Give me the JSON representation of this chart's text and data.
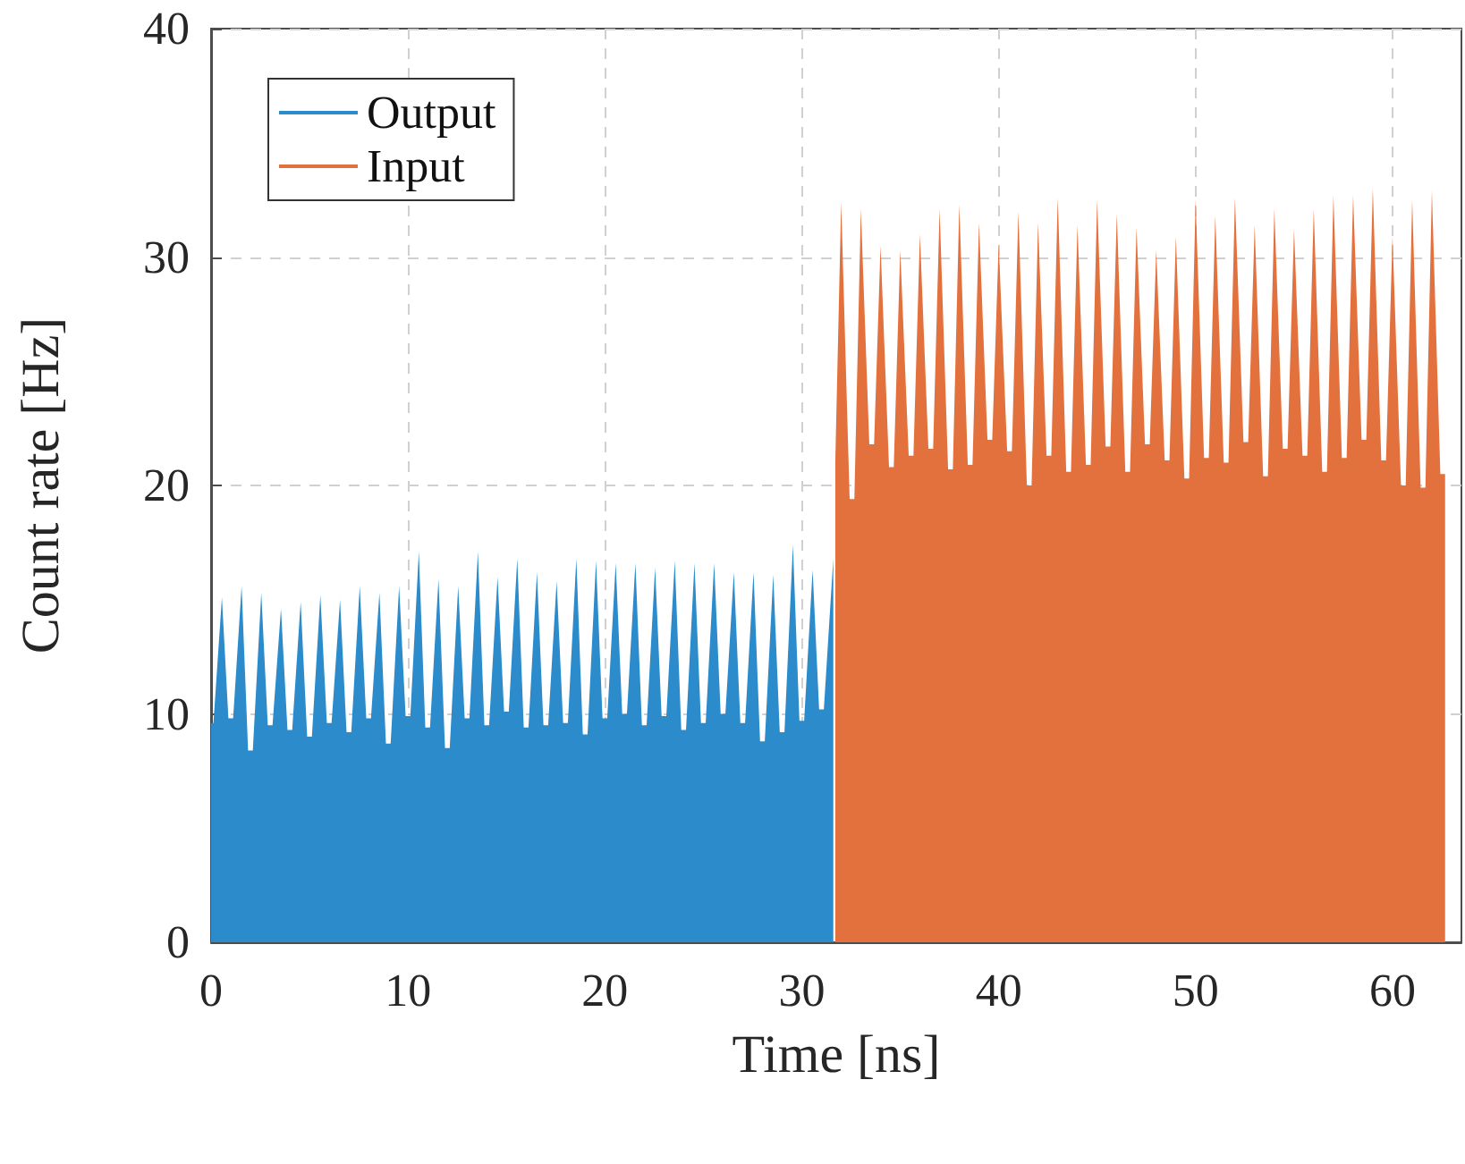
{
  "chart_data": {
    "type": "area",
    "xlabel": "Time [ns]",
    "ylabel": "Count rate [Hz]",
    "xlim": [
      0,
      63.5
    ],
    "xticks": [
      0,
      10,
      20,
      30,
      40,
      50,
      60
    ],
    "ylim": [
      0,
      40
    ],
    "yticks": [
      0,
      10,
      20,
      30,
      40
    ],
    "grid": true,
    "legend": "top left",
    "marker": "none",
    "series": [
      {
        "name": "Output",
        "color": "#2b8bcb",
        "x": [
          0,
          0.12,
          0.55,
          0.88,
          1.12,
          1.55,
          1.88,
          2.12,
          2.55,
          2.88,
          3.12,
          3.55,
          3.88,
          4.12,
          4.55,
          4.88,
          5.12,
          5.55,
          5.88,
          6.12,
          6.55,
          6.88,
          7.12,
          7.55,
          7.88,
          8.12,
          8.55,
          8.88,
          9.12,
          9.55,
          9.88,
          10.12,
          10.55,
          10.88,
          11.12,
          11.55,
          11.88,
          12.12,
          12.55,
          12.88,
          13.12,
          13.55,
          13.88,
          14.12,
          14.55,
          14.88,
          15.12,
          15.55,
          15.88,
          16.12,
          16.55,
          16.88,
          17.12,
          17.55,
          17.88,
          18.12,
          18.55,
          18.88,
          19.12,
          19.55,
          19.88,
          20.12,
          20.55,
          20.88,
          21.12,
          21.55,
          21.88,
          22.12,
          22.55,
          22.88,
          23.12,
          23.55,
          23.88,
          24.12,
          24.55,
          24.88,
          25.12,
          25.55,
          25.88,
          26.12,
          26.55,
          26.88,
          27.12,
          27.55,
          27.88,
          28.12,
          28.55,
          28.88,
          29.12,
          29.55,
          29.88,
          30.12,
          30.55,
          30.88,
          31.12,
          31.6
        ],
        "values": [
          9.6,
          9.6,
          15.1,
          9.8,
          9.8,
          15.6,
          8.4,
          8.4,
          15.3,
          9.5,
          9.5,
          14.6,
          9.3,
          9.3,
          14.9,
          9.0,
          9.0,
          15.2,
          9.6,
          9.6,
          15.0,
          9.2,
          9.2,
          15.6,
          9.8,
          9.8,
          15.3,
          8.7,
          8.7,
          15.6,
          9.9,
          9.9,
          17.1,
          9.4,
          9.4,
          15.9,
          8.5,
          8.5,
          15.6,
          9.8,
          9.8,
          17.1,
          9.5,
          9.5,
          16.0,
          10.1,
          10.1,
          16.8,
          9.4,
          9.4,
          16.2,
          9.5,
          9.5,
          15.8,
          9.6,
          9.6,
          16.8,
          9.1,
          9.1,
          16.7,
          9.8,
          9.8,
          16.6,
          10.0,
          10.0,
          16.6,
          9.5,
          9.5,
          16.4,
          9.9,
          9.9,
          16.7,
          9.3,
          9.3,
          16.6,
          9.6,
          9.6,
          16.6,
          10.0,
          10.0,
          16.2,
          9.6,
          9.6,
          16.2,
          8.8,
          8.8,
          16.1,
          9.2,
          9.2,
          17.4,
          9.7,
          9.7,
          16.3,
          10.2,
          10.2,
          16.8
        ]
      },
      {
        "name": "Input",
        "color": "#e3713d",
        "x": [
          31.7,
          32,
          32.43,
          32.67,
          33,
          33.43,
          33.67,
          34,
          34.43,
          34.67,
          35,
          35.43,
          35.67,
          36,
          36.43,
          36.67,
          37,
          37.43,
          37.67,
          38,
          38.43,
          38.67,
          39,
          39.43,
          39.67,
          40,
          40.43,
          40.67,
          41,
          41.43,
          41.67,
          42,
          42.43,
          42.67,
          43,
          43.43,
          43.67,
          44,
          44.43,
          44.67,
          45,
          45.43,
          45.67,
          46,
          46.43,
          46.67,
          47,
          47.43,
          47.67,
          48,
          48.43,
          48.67,
          49,
          49.43,
          49.67,
          50,
          50.43,
          50.67,
          51,
          51.43,
          51.67,
          52,
          52.43,
          52.67,
          53,
          53.43,
          53.67,
          54,
          54.43,
          54.67,
          55,
          55.43,
          55.67,
          56,
          56.43,
          56.67,
          57,
          57.43,
          57.67,
          58,
          58.43,
          58.67,
          59,
          59.43,
          59.67,
          60,
          60.43,
          60.67,
          61,
          61.43,
          61.67,
          62,
          62.43,
          62.67
        ],
        "values": [
          21.0,
          32.4,
          19.4,
          19.4,
          32.1,
          21.8,
          21.8,
          30.5,
          20.8,
          20.8,
          30.3,
          21.3,
          21.3,
          31.0,
          21.6,
          21.6,
          32.1,
          20.7,
          20.7,
          32.3,
          20.9,
          20.9,
          31.5,
          22.0,
          22.0,
          30.6,
          21.5,
          21.5,
          32.0,
          20.0,
          20.0,
          31.5,
          21.3,
          21.3,
          32.6,
          20.6,
          20.6,
          31.4,
          20.9,
          20.9,
          32.5,
          21.7,
          21.7,
          31.9,
          20.6,
          20.6,
          31.3,
          21.8,
          21.8,
          30.3,
          21.1,
          21.1,
          30.9,
          20.3,
          20.3,
          32.5,
          21.2,
          21.2,
          31.8,
          21.0,
          21.0,
          32.6,
          21.9,
          21.9,
          31.4,
          20.4,
          20.4,
          32.1,
          21.6,
          21.6,
          31.2,
          21.3,
          21.3,
          32.1,
          20.6,
          20.6,
          32.7,
          21.2,
          21.2,
          32.7,
          22.0,
          22.0,
          33.0,
          21.1,
          21.1,
          30.9,
          20.0,
          20.0,
          32.5,
          19.9,
          19.9,
          32.9,
          20.5,
          20.5
        ]
      }
    ]
  }
}
